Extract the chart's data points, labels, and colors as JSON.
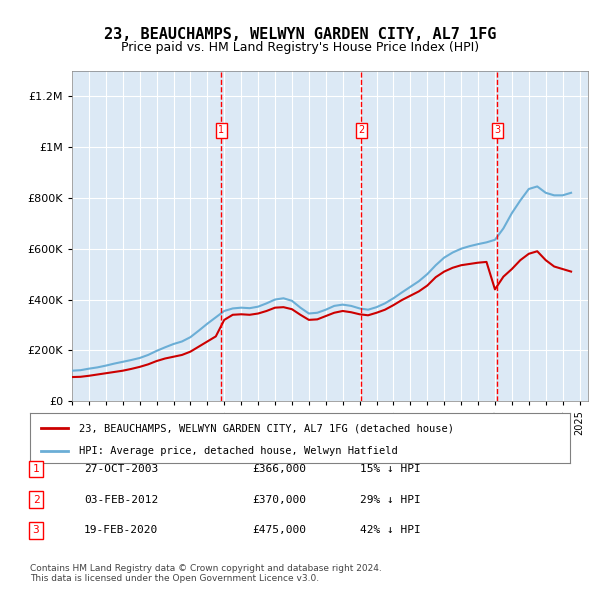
{
  "title": "23, BEAUCHAMPS, WELWYN GARDEN CITY, AL7 1FG",
  "subtitle": "Price paid vs. HM Land Registry's House Price Index (HPI)",
  "background_color": "#dce9f5",
  "plot_bg_color": "#dce9f5",
  "ylabel": "",
  "ylim": [
    0,
    1300000
  ],
  "yticks": [
    0,
    200000,
    400000,
    600000,
    800000,
    1000000,
    1200000
  ],
  "ytick_labels": [
    "£0",
    "£200K",
    "£400K",
    "£600K",
    "£800K",
    "£1M",
    "£1.2M"
  ],
  "hpi_color": "#6baed6",
  "price_color": "#cc0000",
  "legend_label_price": "23, BEAUCHAMPS, WELWYN GARDEN CITY, AL7 1FG (detached house)",
  "legend_label_hpi": "HPI: Average price, detached house, Welwyn Hatfield",
  "transactions": [
    {
      "num": 1,
      "date": "27-OCT-2003",
      "price": 366000,
      "pct": "15%",
      "dir": "↓",
      "x_year": 2003.82
    },
    {
      "num": 2,
      "date": "03-FEB-2012",
      "price": 370000,
      "pct": "29%",
      "dir": "↓",
      "x_year": 2012.09
    },
    {
      "num": 3,
      "date": "19-FEB-2020",
      "price": 475000,
      "pct": "42%",
      "dir": "↓",
      "x_year": 2020.13
    }
  ],
  "footer": "Contains HM Land Registry data © Crown copyright and database right 2024.\nThis data is licensed under the Open Government Licence v3.0.",
  "hpi_data_x": [
    1995,
    1995.5,
    1996,
    1996.5,
    1997,
    1997.5,
    1998,
    1998.5,
    1999,
    1999.5,
    2000,
    2000.5,
    2001,
    2001.5,
    2002,
    2002.5,
    2003,
    2003.5,
    2004,
    2004.5,
    2005,
    2005.5,
    2006,
    2006.5,
    2007,
    2007.5,
    2008,
    2008.5,
    2009,
    2009.5,
    2010,
    2010.5,
    2011,
    2011.5,
    2012,
    2012.5,
    2013,
    2013.5,
    2014,
    2014.5,
    2015,
    2015.5,
    2016,
    2016.5,
    2017,
    2017.5,
    2018,
    2018.5,
    2019,
    2019.5,
    2020,
    2020.5,
    2021,
    2021.5,
    2022,
    2022.5,
    2023,
    2023.5,
    2024,
    2024.5
  ],
  "hpi_data_y": [
    120000,
    122000,
    128000,
    133000,
    140000,
    148000,
    155000,
    162000,
    170000,
    182000,
    198000,
    212000,
    225000,
    235000,
    252000,
    278000,
    305000,
    330000,
    355000,
    365000,
    368000,
    366000,
    372000,
    385000,
    400000,
    405000,
    395000,
    368000,
    345000,
    348000,
    360000,
    375000,
    380000,
    375000,
    365000,
    360000,
    370000,
    385000,
    405000,
    428000,
    450000,
    472000,
    500000,
    535000,
    565000,
    585000,
    600000,
    610000,
    618000,
    625000,
    635000,
    680000,
    740000,
    790000,
    835000,
    845000,
    820000,
    810000,
    810000,
    820000
  ],
  "price_data_x": [
    1995,
    1995.5,
    1996,
    1996.5,
    1997,
    1997.5,
    1998,
    1998.5,
    1999,
    1999.5,
    2000,
    2000.5,
    2001,
    2001.5,
    2002,
    2002.5,
    2003,
    2003.5,
    2004,
    2004.5,
    2005,
    2005.5,
    2006,
    2006.5,
    2007,
    2007.5,
    2008,
    2008.5,
    2009,
    2009.5,
    2010,
    2010.5,
    2011,
    2011.5,
    2012,
    2012.5,
    2013,
    2013.5,
    2014,
    2014.5,
    2015,
    2015.5,
    2016,
    2016.5,
    2017,
    2017.5,
    2018,
    2018.5,
    2019,
    2019.5,
    2020,
    2020.5,
    2021,
    2021.5,
    2022,
    2022.5,
    2023,
    2023.5,
    2024,
    2024.5
  ],
  "price_data_y": [
    95000,
    96000,
    100000,
    105000,
    110000,
    115000,
    120000,
    127000,
    135000,
    145000,
    158000,
    168000,
    175000,
    182000,
    195000,
    215000,
    235000,
    255000,
    320000,
    340000,
    342000,
    340000,
    345000,
    355000,
    368000,
    370000,
    362000,
    340000,
    320000,
    322000,
    335000,
    348000,
    355000,
    350000,
    342000,
    338000,
    348000,
    360000,
    378000,
    398000,
    415000,
    432000,
    455000,
    488000,
    510000,
    525000,
    535000,
    540000,
    545000,
    548000,
    440000,
    490000,
    520000,
    555000,
    580000,
    590000,
    555000,
    530000,
    520000,
    510000
  ],
  "xmin": 1995,
  "xmax": 2025.5
}
